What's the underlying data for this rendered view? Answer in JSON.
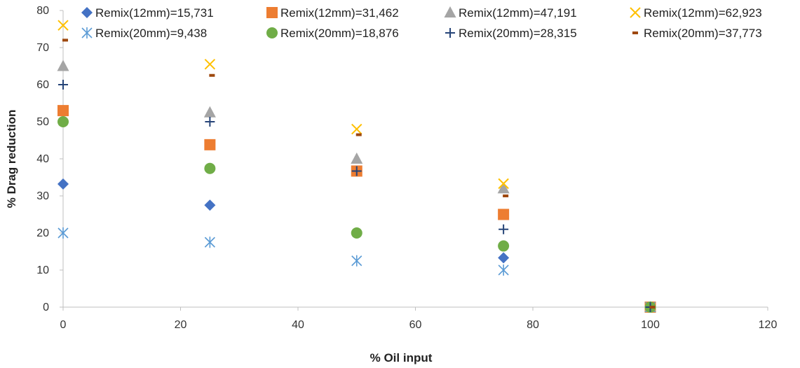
{
  "chart_data": {
    "type": "scatter",
    "title": "",
    "xlabel": "% Oil input",
    "ylabel": "% Drag reduction",
    "xlim": [
      0,
      120
    ],
    "ylim": [
      0,
      80
    ],
    "xticks": [
      0,
      20,
      40,
      60,
      80,
      100,
      120
    ],
    "yticks": [
      0,
      10,
      20,
      30,
      40,
      50,
      60,
      70,
      80
    ],
    "grid": false,
    "legend_position": "top",
    "series": [
      {
        "name": "Remix(12mm)=15,731",
        "marker": "diamond",
        "color": "#4472C4",
        "x": [
          0,
          25,
          50,
          75,
          100
        ],
        "y": [
          33.2,
          27.5,
          20,
          13.3,
          0
        ]
      },
      {
        "name": "Remix(12mm)=31,462",
        "marker": "square",
        "color": "#ED7D31",
        "x": [
          0,
          25,
          50,
          75,
          100
        ],
        "y": [
          53,
          43.8,
          36.7,
          25,
          0
        ]
      },
      {
        "name": "Remix(12mm)=47,191",
        "marker": "triangle",
        "color": "#A5A5A5",
        "x": [
          0,
          25,
          50,
          75,
          100
        ],
        "y": [
          65,
          52.5,
          40,
          32,
          0
        ]
      },
      {
        "name": "Remix(12mm)=62,923",
        "marker": "x",
        "color": "#FFC000",
        "x": [
          0,
          25,
          50,
          75,
          100
        ],
        "y": [
          76,
          65.5,
          48,
          33.3,
          0
        ]
      },
      {
        "name": "Remix(20mm)=9,438",
        "marker": "asterisk",
        "color": "#5B9BD5",
        "x": [
          0,
          25,
          50,
          75,
          100
        ],
        "y": [
          20,
          17.5,
          12.5,
          10,
          0
        ]
      },
      {
        "name": "Remix(20mm)=18,876",
        "marker": "circle",
        "color": "#70AD47",
        "x": [
          0,
          25,
          50,
          75,
          100
        ],
        "y": [
          50,
          37.4,
          20,
          16.5,
          0
        ]
      },
      {
        "name": "Remix(20mm)=28,315",
        "marker": "plus",
        "color": "#264478",
        "x": [
          0,
          25,
          50,
          75,
          100
        ],
        "y": [
          60,
          50,
          36.7,
          21,
          0
        ]
      },
      {
        "name": "Remix(20mm)=37,773",
        "marker": "dash",
        "color": "#9E480E",
        "x": [
          0,
          25,
          50,
          75,
          100
        ],
        "y": [
          72,
          62.5,
          46.5,
          30,
          0
        ]
      }
    ]
  }
}
